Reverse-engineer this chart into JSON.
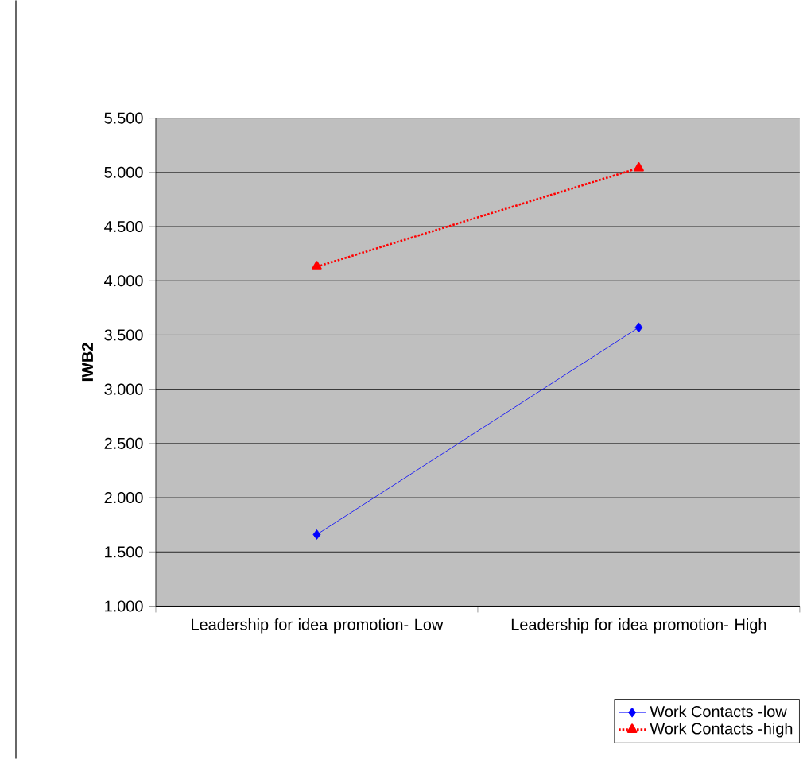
{
  "chart_data": {
    "type": "line",
    "ylabel": "IWB2",
    "categories": [
      "Leadership for idea promotion- Low",
      "Leadership for idea promotion- High"
    ],
    "series": [
      {
        "name": "Work Contacts -low",
        "color": "#0000ff",
        "values": [
          1.66,
          3.57
        ],
        "marker": "diamond",
        "line_style": "solid"
      },
      {
        "name": "Work Contacts -high",
        "color": "#ff0000",
        "values": [
          4.13,
          5.04
        ],
        "marker": "triangle",
        "line_style": "dotted"
      }
    ],
    "ylim": [
      1,
      5.5
    ],
    "yticks": [
      {
        "value": 1,
        "label": "1.000"
      },
      {
        "value": 1.5,
        "label": "1.500"
      },
      {
        "value": 2,
        "label": "2.000"
      },
      {
        "value": 2.5,
        "label": "2.500"
      },
      {
        "value": 3,
        "label": "3.000"
      },
      {
        "value": 3.5,
        "label": "3.500"
      },
      {
        "value": 4,
        "label": "4.000"
      },
      {
        "value": 4.5,
        "label": "4.500"
      },
      {
        "value": 5,
        "label": "5.000"
      },
      {
        "value": 5.5,
        "label": "5.500"
      }
    ],
    "grid": "y",
    "legend": "bottom right"
  }
}
